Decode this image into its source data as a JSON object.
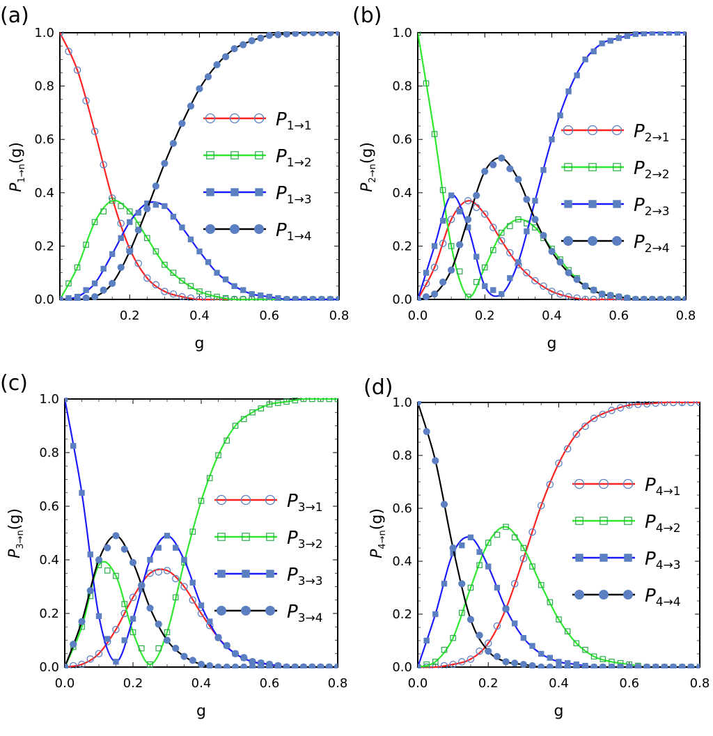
{
  "colors": {
    "red": "#ff2020",
    "green": "#2ee82e",
    "blue": "#1a1aff",
    "black": "#000000",
    "marker": "#5b7fc0"
  },
  "chart_data": [
    {
      "id": "a",
      "panel_label": "(a)",
      "type": "line",
      "xlabel": "g",
      "ylabel": {
        "main": "P",
        "sub": "1→n",
        "tail": "(g)"
      },
      "xlim": [
        0.0,
        0.8
      ],
      "ylim": [
        0.0,
        1.0
      ],
      "xticks": [
        "0.2",
        "0.4",
        "0.6",
        "0.8"
      ],
      "yticks": [
        "0.0",
        "0.2",
        "0.4",
        "0.6",
        "0.8",
        "1.0"
      ],
      "x": [
        0.0,
        0.05,
        0.1,
        0.15,
        0.2,
        0.25,
        0.3,
        0.35,
        0.4,
        0.45,
        0.5,
        0.55,
        0.6,
        0.65,
        0.7,
        0.75,
        0.8
      ],
      "series": [
        {
          "name": "P",
          "sub": "1→1",
          "color": "red",
          "marker": "open-circle",
          "values": [
            1.0,
            0.86,
            0.63,
            0.38,
            0.19,
            0.08,
            0.03,
            0.01,
            0.0,
            0.0,
            0.0,
            0.0,
            0.0,
            0.0,
            0.0,
            0.0,
            0.0
          ]
        },
        {
          "name": "P",
          "sub": "1→2",
          "color": "green",
          "marker": "open-square",
          "values": [
            0.0,
            0.12,
            0.29,
            0.37,
            0.33,
            0.23,
            0.13,
            0.07,
            0.03,
            0.01,
            0.0,
            0.0,
            0.0,
            0.0,
            0.0,
            0.0,
            0.0
          ]
        },
        {
          "name": "P",
          "sub": "1→3",
          "color": "blue",
          "marker": "filled-square",
          "values": [
            0.0,
            0.01,
            0.06,
            0.17,
            0.29,
            0.36,
            0.35,
            0.27,
            0.18,
            0.1,
            0.05,
            0.02,
            0.01,
            0.0,
            0.0,
            0.0,
            0.0
          ]
        },
        {
          "name": "P",
          "sub": "1→4",
          "color": "black",
          "marker": "filled-circle",
          "values": [
            0.0,
            0.0,
            0.01,
            0.06,
            0.18,
            0.34,
            0.51,
            0.66,
            0.79,
            0.88,
            0.94,
            0.97,
            0.99,
            0.995,
            1.0,
            1.0,
            1.0
          ]
        }
      ]
    },
    {
      "id": "b",
      "panel_label": "(b)",
      "type": "line",
      "xlabel": "g",
      "ylabel": {
        "main": "P",
        "sub": "2→n",
        "tail": "(g)"
      },
      "xlim": [
        0.0,
        0.8
      ],
      "ylim": [
        0.0,
        1.0
      ],
      "xticks": [
        "0.0",
        "0.2",
        "0.4",
        "0.6",
        "0.8"
      ],
      "yticks": [
        "0.0",
        "0.2",
        "0.4",
        "0.6",
        "0.8",
        "1.0"
      ],
      "x": [
        0.0,
        0.05,
        0.1,
        0.15,
        0.2,
        0.25,
        0.3,
        0.35,
        0.4,
        0.45,
        0.5,
        0.55,
        0.6,
        0.65,
        0.7,
        0.75,
        0.8
      ],
      "series": [
        {
          "name": "P",
          "sub": "2→1",
          "color": "red",
          "marker": "open-circle",
          "values": [
            0.0,
            0.12,
            0.3,
            0.37,
            0.32,
            0.22,
            0.13,
            0.07,
            0.03,
            0.01,
            0.0,
            0.0,
            0.0,
            0.0,
            0.0,
            0.0,
            0.0
          ]
        },
        {
          "name": "P",
          "sub": "2→2",
          "color": "green",
          "marker": "open-square",
          "values": [
            1.0,
            0.62,
            0.2,
            0.01,
            0.12,
            0.25,
            0.3,
            0.27,
            0.19,
            0.11,
            0.05,
            0.02,
            0.01,
            0.0,
            0.0,
            0.0,
            0.0
          ]
        },
        {
          "name": "P",
          "sub": "2→3",
          "color": "blue",
          "marker": "filled-square",
          "values": [
            0.0,
            0.2,
            0.39,
            0.27,
            0.05,
            0.02,
            0.14,
            0.37,
            0.6,
            0.78,
            0.9,
            0.96,
            0.98,
            0.995,
            1.0,
            1.0,
            1.0
          ]
        },
        {
          "name": "P",
          "sub": "2→4",
          "color": "black",
          "marker": "filled-circle",
          "values": [
            0.0,
            0.02,
            0.11,
            0.3,
            0.48,
            0.53,
            0.45,
            0.3,
            0.18,
            0.1,
            0.05,
            0.02,
            0.01,
            0.0,
            0.0,
            0.0,
            0.0
          ]
        }
      ]
    },
    {
      "id": "c",
      "panel_label": "(c)",
      "type": "line",
      "xlabel": "g",
      "ylabel": {
        "main": "P",
        "sub": "3→n",
        "tail": "(g)"
      },
      "xlim": [
        0.0,
        0.8
      ],
      "ylim": [
        0.0,
        1.0
      ],
      "xticks": [
        "0.0",
        "0.2",
        "0.4",
        "0.6",
        "0.8"
      ],
      "yticks": [
        "0.0",
        "0.2",
        "0.4",
        "0.6",
        "0.8",
        "1.0"
      ],
      "x": [
        0.0,
        0.05,
        0.1,
        0.15,
        0.2,
        0.25,
        0.3,
        0.35,
        0.4,
        0.45,
        0.5,
        0.55,
        0.6,
        0.65,
        0.7,
        0.75,
        0.8
      ],
      "series": [
        {
          "name": "P",
          "sub": "3→1",
          "color": "red",
          "marker": "open-circle",
          "values": [
            0.0,
            0.01,
            0.05,
            0.14,
            0.26,
            0.35,
            0.36,
            0.3,
            0.2,
            0.11,
            0.05,
            0.02,
            0.01,
            0.0,
            0.0,
            0.0,
            0.0
          ]
        },
        {
          "name": "P",
          "sub": "3→2",
          "color": "green",
          "marker": "open-square",
          "values": [
            0.0,
            0.15,
            0.38,
            0.34,
            0.13,
            0.01,
            0.13,
            0.39,
            0.62,
            0.79,
            0.9,
            0.95,
            0.98,
            0.99,
            1.0,
            1.0,
            1.0
          ]
        },
        {
          "name": "P",
          "sub": "3→3",
          "color": "blue",
          "marker": "filled-square",
          "values": [
            1.0,
            0.65,
            0.19,
            0.02,
            0.18,
            0.4,
            0.49,
            0.4,
            0.23,
            0.11,
            0.05,
            0.02,
            0.01,
            0.0,
            0.0,
            0.0,
            0.0
          ]
        },
        {
          "name": "P",
          "sub": "3→4",
          "color": "black",
          "marker": "filled-circle",
          "values": [
            0.0,
            0.17,
            0.4,
            0.49,
            0.39,
            0.22,
            0.1,
            0.04,
            0.01,
            0.0,
            0.0,
            0.0,
            0.0,
            0.0,
            0.0,
            0.0,
            0.0
          ]
        }
      ]
    },
    {
      "id": "d",
      "panel_label": "(d)",
      "type": "line",
      "xlabel": "g",
      "ylabel": {
        "main": "P",
        "sub": "4→n",
        "tail": "(g)"
      },
      "xlim": [
        0.0,
        0.8
      ],
      "ylim": [
        0.0,
        1.0
      ],
      "xticks": [
        "0.0",
        "0.2",
        "0.4",
        "0.6",
        "0.8"
      ],
      "yticks": [
        "0.0",
        "0.2",
        "0.4",
        "0.6",
        "0.8",
        "1.0"
      ],
      "x": [
        0.0,
        0.05,
        0.1,
        0.15,
        0.2,
        0.25,
        0.3,
        0.35,
        0.4,
        0.45,
        0.5,
        0.55,
        0.6,
        0.65,
        0.7,
        0.75,
        0.8
      ],
      "series": [
        {
          "name": "P",
          "sub": "4→1",
          "color": "red",
          "marker": "open-circle",
          "values": [
            0.0,
            0.0,
            0.01,
            0.03,
            0.09,
            0.22,
            0.41,
            0.61,
            0.77,
            0.88,
            0.94,
            0.97,
            0.99,
            0.995,
            1.0,
            1.0,
            1.0
          ]
        },
        {
          "name": "P",
          "sub": "4→2",
          "color": "green",
          "marker": "open-square",
          "values": [
            0.0,
            0.02,
            0.11,
            0.3,
            0.47,
            0.53,
            0.45,
            0.31,
            0.18,
            0.09,
            0.04,
            0.02,
            0.01,
            0.0,
            0.0,
            0.0,
            0.0
          ]
        },
        {
          "name": "P",
          "sub": "4→3",
          "color": "blue",
          "marker": "filled-square",
          "values": [
            0.0,
            0.2,
            0.43,
            0.49,
            0.38,
            0.22,
            0.11,
            0.05,
            0.02,
            0.01,
            0.0,
            0.0,
            0.0,
            0.0,
            0.0,
            0.0,
            0.0
          ]
        },
        {
          "name": "P",
          "sub": "4→4",
          "color": "black",
          "marker": "filled-circle",
          "values": [
            1.0,
            0.78,
            0.45,
            0.18,
            0.06,
            0.02,
            0.01,
            0.0,
            0.0,
            0.0,
            0.0,
            0.0,
            0.0,
            0.0,
            0.0,
            0.0,
            0.0
          ]
        }
      ]
    }
  ]
}
